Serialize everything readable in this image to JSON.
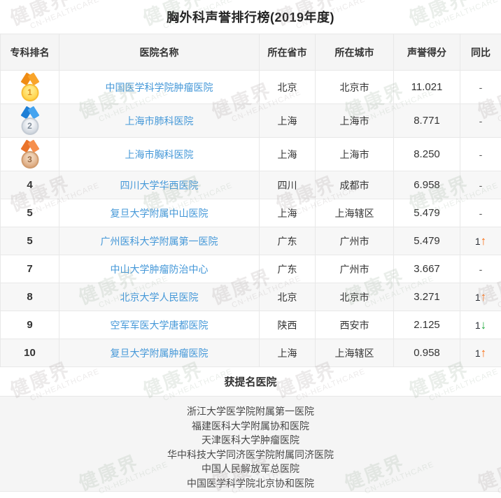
{
  "page": {
    "title": "胸外科声誉排行榜(2019年度)"
  },
  "table": {
    "columns": [
      {
        "key": "rank",
        "label": "专科排名"
      },
      {
        "key": "hospital",
        "label": "医院名称"
      },
      {
        "key": "province",
        "label": "所在省市"
      },
      {
        "key": "city",
        "label": "所在城市"
      },
      {
        "key": "score",
        "label": "声誉得分"
      },
      {
        "key": "trend",
        "label": "同比"
      }
    ],
    "rows": [
      {
        "rank": "1",
        "medal": "gold",
        "hospital": "中国医学科学院肿瘤医院",
        "province": "北京",
        "city": "北京市",
        "score": "11.021",
        "trend": "-",
        "trend_dir": null
      },
      {
        "rank": "2",
        "medal": "silver",
        "hospital": "上海市肺科医院",
        "province": "上海",
        "city": "上海市",
        "score": "8.771",
        "trend": "-",
        "trend_dir": null
      },
      {
        "rank": "3",
        "medal": "bronze",
        "hospital": "上海市胸科医院",
        "province": "上海",
        "city": "上海市",
        "score": "8.250",
        "trend": "-",
        "trend_dir": null
      },
      {
        "rank": "4",
        "medal": null,
        "hospital": "四川大学华西医院",
        "province": "四川",
        "city": "成都市",
        "score": "6.958",
        "trend": "-",
        "trend_dir": null
      },
      {
        "rank": "5",
        "medal": null,
        "hospital": "复旦大学附属中山医院",
        "province": "上海",
        "city": "上海辖区",
        "score": "5.479",
        "trend": "-",
        "trend_dir": null
      },
      {
        "rank": "5",
        "medal": null,
        "hospital": "广州医科大学附属第一医院",
        "province": "广东",
        "city": "广州市",
        "score": "5.479",
        "trend": "1",
        "trend_dir": "up"
      },
      {
        "rank": "7",
        "medal": null,
        "hospital": "中山大学肿瘤防治中心",
        "province": "广东",
        "city": "广州市",
        "score": "3.667",
        "trend": "-",
        "trend_dir": null
      },
      {
        "rank": "8",
        "medal": null,
        "hospital": "北京大学人民医院",
        "province": "北京",
        "city": "北京市",
        "score": "3.271",
        "trend": "1",
        "trend_dir": "up"
      },
      {
        "rank": "9",
        "medal": null,
        "hospital": "空军军医大学唐都医院",
        "province": "陕西",
        "city": "西安市",
        "score": "2.125",
        "trend": "1",
        "trend_dir": "down"
      },
      {
        "rank": "10",
        "medal": null,
        "hospital": "复旦大学附属肿瘤医院",
        "province": "上海",
        "city": "上海辖区",
        "score": "0.958",
        "trend": "1",
        "trend_dir": "up"
      }
    ]
  },
  "nominated": {
    "title": "获提名医院",
    "hospitals": [
      "浙江大学医学院附属第一医院",
      "福建医科大学附属协和医院",
      "天津医科大学肿瘤医院",
      "华中科技大学同济医学院附属同济医院",
      "中国人民解放军总医院",
      "中国医学科学院北京协和医院"
    ]
  },
  "icons": {
    "up_arrow": "↑",
    "down_arrow": "↓"
  },
  "watermark": {
    "text": "健康界",
    "subtext": "CN-HEALTHCARE"
  },
  "colors": {
    "link_blue": "#4598d8",
    "up_orange": "#f96c10",
    "down_green": "#1fa83c",
    "gold": "#ffd043",
    "silver": "#ccd3db",
    "bronze": "#dba67b",
    "header_bg": "#f5f5f5",
    "zebra_bg": "#f7f7f7",
    "border": "#e8e8e8"
  }
}
